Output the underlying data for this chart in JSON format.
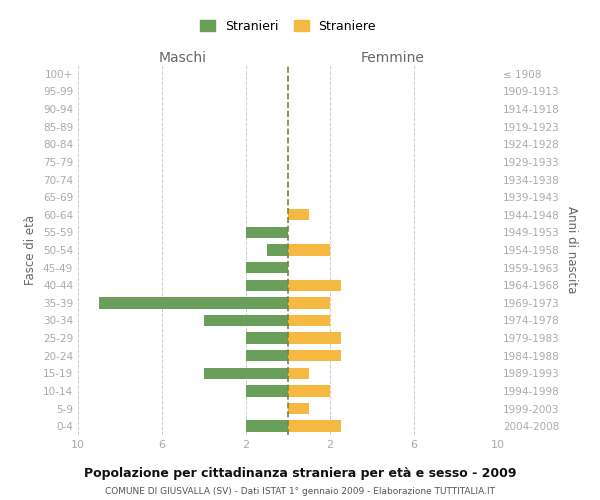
{
  "age_groups": [
    "100+",
    "95-99",
    "90-94",
    "85-89",
    "80-84",
    "75-79",
    "70-74",
    "65-69",
    "60-64",
    "55-59",
    "50-54",
    "45-49",
    "40-44",
    "35-39",
    "30-34",
    "25-29",
    "20-24",
    "15-19",
    "10-14",
    "5-9",
    "0-4"
  ],
  "birth_years": [
    "≤ 1908",
    "1909-1913",
    "1914-1918",
    "1919-1923",
    "1924-1928",
    "1929-1933",
    "1934-1938",
    "1939-1943",
    "1944-1948",
    "1949-1953",
    "1954-1958",
    "1959-1963",
    "1964-1968",
    "1969-1973",
    "1974-1978",
    "1979-1983",
    "1984-1988",
    "1989-1993",
    "1994-1998",
    "1999-2003",
    "2004-2008"
  ],
  "maschi": [
    0,
    0,
    0,
    0,
    0,
    0,
    0,
    0,
    0,
    2,
    1,
    2,
    2,
    9,
    4,
    2,
    2,
    4,
    2,
    0,
    2
  ],
  "femmine": [
    0,
    0,
    0,
    0,
    0,
    0,
    0,
    0,
    1,
    0,
    2,
    0,
    2.5,
    2,
    2,
    2.5,
    2.5,
    1,
    2,
    1,
    2.5
  ],
  "color_maschi": "#6a9e5b",
  "color_femmine": "#f5b942",
  "title_main": "Popolazione per cittadinanza straniera per età e sesso - 2009",
  "title_sub": "COMUNE DI GIUSVALLA (SV) - Dati ISTAT 1° gennaio 2009 - Elaborazione TUTTITALIA.IT",
  "xlabel_left": "Maschi",
  "xlabel_right": "Femmine",
  "ylabel_left": "Fasce di età",
  "ylabel_right": "Anni di nascita",
  "legend_maschi": "Stranieri",
  "legend_femmine": "Straniere",
  "xlim": 10,
  "xticks": [
    -10,
    -6,
    -2,
    2,
    6,
    10
  ],
  "background_color": "#ffffff",
  "grid_color": "#cccccc",
  "tick_color": "#aaaaaa",
  "axis_label_color": "#666666",
  "center_line_color": "#808040"
}
